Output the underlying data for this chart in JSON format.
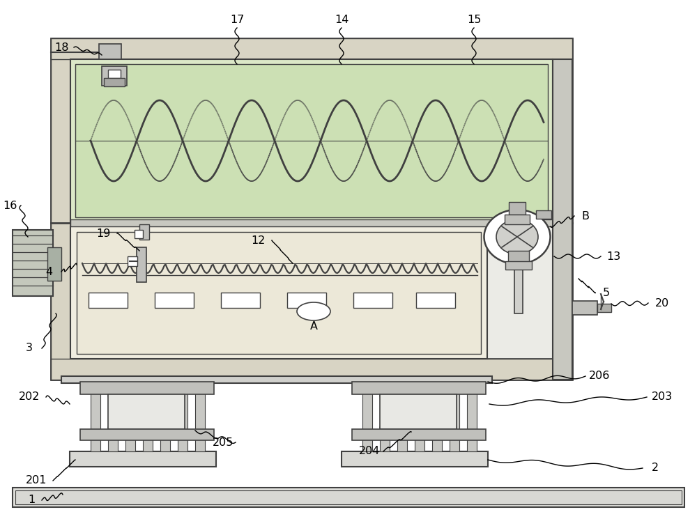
{
  "bg_color": "#ffffff",
  "lc": "#404040",
  "fc_outer": "#e8e8e4",
  "fc_inner_top": "#dce8cc",
  "fc_inner_bot": "#f0ede0",
  "fc_wall": "#c8c8c0",
  "fc_support": "#d0d0cc",
  "fc_spring": "#b8b8b0",
  "fc_base": "#e0e0dc",
  "fc_motor": "#c0c4b8"
}
